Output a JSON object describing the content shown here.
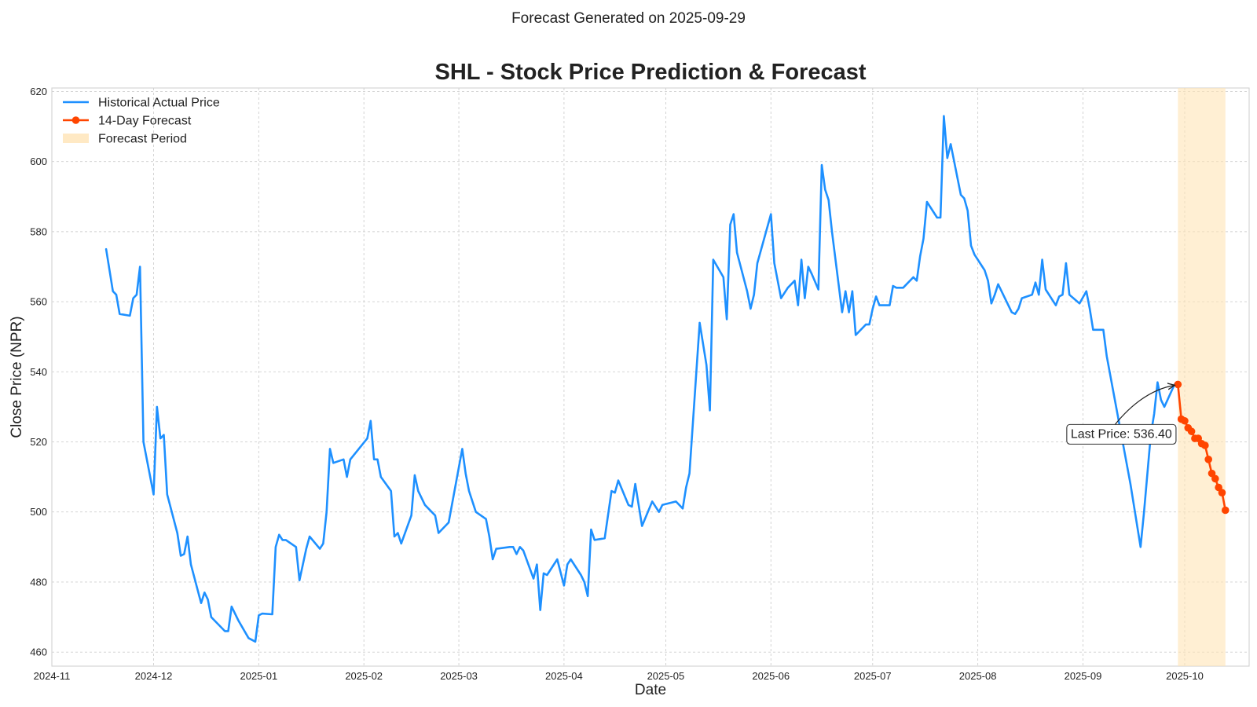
{
  "suptitle": "Forecast Generated on 2025-09-29",
  "chart_data": {
    "type": "line",
    "title": "SHL - Stock Price Prediction & Forecast",
    "xlabel": "Date",
    "ylabel": "Close Price (NPR)",
    "xlim": [
      "2024-11-01",
      "2025-10-20"
    ],
    "ylim": [
      456,
      621
    ],
    "x_ticks": [
      "2024-11-01",
      "2024-12-01",
      "2025-01-01",
      "2025-02-01",
      "2025-03-01",
      "2025-04-01",
      "2025-05-01",
      "2025-06-01",
      "2025-07-01",
      "2025-08-01",
      "2025-09-01",
      "2025-10-01"
    ],
    "x_tick_labels": [
      "2024-11",
      "2024-12",
      "2025-01",
      "2025-02",
      "2025-03",
      "2025-04",
      "2025-05",
      "2025-06",
      "2025-07",
      "2025-08",
      "2025-09",
      "2025-10"
    ],
    "y_ticks": [
      460,
      480,
      500,
      520,
      540,
      560,
      580,
      600,
      620
    ],
    "grid": true,
    "legend_position": "top-left",
    "forecast_period": [
      "2025-09-29",
      "2025-10-13"
    ],
    "series": [
      {
        "name": "Historical Actual Price",
        "color": "#1e90ff",
        "marker": "none",
        "points": [
          [
            "2024-11-17",
            575
          ],
          [
            "2024-11-19",
            563
          ],
          [
            "2024-11-20",
            562
          ],
          [
            "2024-11-21",
            556.5
          ],
          [
            "2024-11-24",
            556
          ],
          [
            "2024-11-25",
            561
          ],
          [
            "2024-11-26",
            562
          ],
          [
            "2024-11-27",
            570
          ],
          [
            "2024-11-28",
            520
          ],
          [
            "2024-12-01",
            505
          ],
          [
            "2024-12-02",
            530
          ],
          [
            "2024-12-03",
            521
          ],
          [
            "2024-12-04",
            522
          ],
          [
            "2024-12-05",
            505
          ],
          [
            "2024-12-08",
            494
          ],
          [
            "2024-12-09",
            487.5
          ],
          [
            "2024-12-10",
            488
          ],
          [
            "2024-12-11",
            493
          ],
          [
            "2024-12-12",
            485
          ],
          [
            "2024-12-15",
            474
          ],
          [
            "2024-12-16",
            477
          ],
          [
            "2024-12-17",
            475
          ],
          [
            "2024-12-18",
            470
          ],
          [
            "2024-12-22",
            466
          ],
          [
            "2024-12-23",
            466
          ],
          [
            "2024-12-24",
            473
          ],
          [
            "2024-12-26",
            469
          ],
          [
            "2024-12-29",
            464
          ],
          [
            "2024-12-31",
            463
          ],
          [
            "2025-01-01",
            470.5
          ],
          [
            "2025-01-02",
            471
          ],
          [
            "2025-01-05",
            470.8
          ],
          [
            "2025-01-06",
            490
          ],
          [
            "2025-01-07",
            493.5
          ],
          [
            "2025-01-08",
            492
          ],
          [
            "2025-01-09",
            492
          ],
          [
            "2025-01-12",
            490
          ],
          [
            "2025-01-13",
            480.5
          ],
          [
            "2025-01-15",
            489.5
          ],
          [
            "2025-01-16",
            493
          ],
          [
            "2025-01-19",
            489.5
          ],
          [
            "2025-01-20",
            491
          ],
          [
            "2025-01-21",
            500
          ],
          [
            "2025-01-22",
            518
          ],
          [
            "2025-01-23",
            514
          ],
          [
            "2025-01-26",
            515
          ],
          [
            "2025-01-27",
            510
          ],
          [
            "2025-01-28",
            515
          ],
          [
            "2025-02-02",
            521
          ],
          [
            "2025-02-03",
            526
          ],
          [
            "2025-02-04",
            515
          ],
          [
            "2025-02-05",
            515
          ],
          [
            "2025-02-06",
            510
          ],
          [
            "2025-02-09",
            506
          ],
          [
            "2025-02-10",
            493
          ],
          [
            "2025-02-11",
            494
          ],
          [
            "2025-02-12",
            491
          ],
          [
            "2025-02-15",
            499
          ],
          [
            "2025-02-16",
            510.5
          ],
          [
            "2025-02-17",
            506
          ],
          [
            "2025-02-19",
            502
          ],
          [
            "2025-02-22",
            499
          ],
          [
            "2025-02-23",
            494
          ],
          [
            "2025-02-26",
            497
          ],
          [
            "2025-03-02",
            518
          ],
          [
            "2025-03-03",
            511
          ],
          [
            "2025-03-04",
            506
          ],
          [
            "2025-03-06",
            500
          ],
          [
            "2025-03-09",
            498
          ],
          [
            "2025-03-10",
            493
          ],
          [
            "2025-03-11",
            486.5
          ],
          [
            "2025-03-12",
            489.5
          ],
          [
            "2025-03-16",
            490
          ],
          [
            "2025-03-17",
            490
          ],
          [
            "2025-03-18",
            488
          ],
          [
            "2025-03-19",
            490
          ],
          [
            "2025-03-20",
            489
          ],
          [
            "2025-03-23",
            481
          ],
          [
            "2025-03-24",
            485
          ],
          [
            "2025-03-25",
            472
          ],
          [
            "2025-03-26",
            482.5
          ],
          [
            "2025-03-27",
            482
          ],
          [
            "2025-03-30",
            486.5
          ],
          [
            "2025-04-01",
            479
          ],
          [
            "2025-04-02",
            485
          ],
          [
            "2025-04-03",
            486.5
          ],
          [
            "2025-04-06",
            482
          ],
          [
            "2025-04-07",
            480
          ],
          [
            "2025-04-08",
            476
          ],
          [
            "2025-04-09",
            495
          ],
          [
            "2025-04-10",
            492
          ],
          [
            "2025-04-13",
            492.5
          ],
          [
            "2025-04-15",
            506
          ],
          [
            "2025-04-16",
            505.5
          ],
          [
            "2025-04-17",
            509
          ],
          [
            "2025-04-20",
            502
          ],
          [
            "2025-04-21",
            501.5
          ],
          [
            "2025-04-22",
            508
          ],
          [
            "2025-04-24",
            496
          ],
          [
            "2025-04-27",
            503
          ],
          [
            "2025-04-29",
            500
          ],
          [
            "2025-04-30",
            502
          ],
          [
            "2025-05-04",
            503
          ],
          [
            "2025-05-06",
            501
          ],
          [
            "2025-05-07",
            507
          ],
          [
            "2025-05-08",
            511
          ],
          [
            "2025-05-11",
            554
          ],
          [
            "2025-05-13",
            542
          ],
          [
            "2025-05-14",
            529
          ],
          [
            "2025-05-15",
            572
          ],
          [
            "2025-05-18",
            567
          ],
          [
            "2025-05-19",
            555
          ],
          [
            "2025-05-20",
            582
          ],
          [
            "2025-05-21",
            585
          ],
          [
            "2025-05-22",
            574
          ],
          [
            "2025-05-25",
            563
          ],
          [
            "2025-05-26",
            558
          ],
          [
            "2025-05-27",
            562
          ],
          [
            "2025-05-28",
            571
          ],
          [
            "2025-06-01",
            585
          ],
          [
            "2025-06-02",
            571
          ],
          [
            "2025-06-04",
            561
          ],
          [
            "2025-06-06",
            564
          ],
          [
            "2025-06-08",
            566
          ],
          [
            "2025-06-09",
            559
          ],
          [
            "2025-06-10",
            572
          ],
          [
            "2025-06-11",
            561
          ],
          [
            "2025-06-12",
            570
          ],
          [
            "2025-06-13",
            568
          ],
          [
            "2025-06-15",
            563.5
          ],
          [
            "2025-06-16",
            599
          ],
          [
            "2025-06-17",
            592
          ],
          [
            "2025-06-18",
            589
          ],
          [
            "2025-06-19",
            580
          ],
          [
            "2025-06-22",
            557
          ],
          [
            "2025-06-23",
            563
          ],
          [
            "2025-06-24",
            557
          ],
          [
            "2025-06-25",
            563
          ],
          [
            "2025-06-26",
            550.5
          ],
          [
            "2025-06-29",
            553.5
          ],
          [
            "2025-06-30",
            553.5
          ],
          [
            "2025-07-01",
            558
          ],
          [
            "2025-07-02",
            561.5
          ],
          [
            "2025-07-03",
            559
          ],
          [
            "2025-07-06",
            559
          ],
          [
            "2025-07-07",
            564.5
          ],
          [
            "2025-07-08",
            564
          ],
          [
            "2025-07-10",
            564
          ],
          [
            "2025-07-13",
            567
          ],
          [
            "2025-07-14",
            566
          ],
          [
            "2025-07-15",
            573
          ],
          [
            "2025-07-16",
            578
          ],
          [
            "2025-07-17",
            588.5
          ],
          [
            "2025-07-20",
            584
          ],
          [
            "2025-07-21",
            584
          ],
          [
            "2025-07-22",
            613
          ],
          [
            "2025-07-23",
            601
          ],
          [
            "2025-07-24",
            605
          ],
          [
            "2025-07-27",
            590.5
          ],
          [
            "2025-07-28",
            589.5
          ],
          [
            "2025-07-29",
            586
          ],
          [
            "2025-07-30",
            576
          ],
          [
            "2025-07-31",
            573.5
          ],
          [
            "2025-08-03",
            569
          ],
          [
            "2025-08-04",
            566
          ],
          [
            "2025-08-05",
            559.5
          ],
          [
            "2025-08-06",
            562
          ],
          [
            "2025-08-07",
            565
          ],
          [
            "2025-08-11",
            557
          ],
          [
            "2025-08-12",
            556.5
          ],
          [
            "2025-08-13",
            558
          ],
          [
            "2025-08-14",
            561
          ],
          [
            "2025-08-17",
            562
          ],
          [
            "2025-08-18",
            565.5
          ],
          [
            "2025-08-19",
            562
          ],
          [
            "2025-08-20",
            572
          ],
          [
            "2025-08-21",
            563.5
          ],
          [
            "2025-08-24",
            559
          ],
          [
            "2025-08-25",
            561.5
          ],
          [
            "2025-08-26",
            562
          ],
          [
            "2025-08-27",
            571
          ],
          [
            "2025-08-28",
            562
          ],
          [
            "2025-08-31",
            559.5
          ],
          [
            "2025-09-02",
            563
          ],
          [
            "2025-09-03",
            558
          ],
          [
            "2025-09-04",
            552
          ],
          [
            "2025-09-07",
            552
          ],
          [
            "2025-09-08",
            544.5
          ],
          [
            "2025-09-15",
            508
          ],
          [
            "2025-09-18",
            490
          ],
          [
            "2025-09-19",
            500
          ],
          [
            "2025-09-21",
            522
          ],
          [
            "2025-09-22",
            528
          ],
          [
            "2025-09-23",
            537
          ],
          [
            "2025-09-24",
            532
          ],
          [
            "2025-09-25",
            530
          ],
          [
            "2025-09-28",
            536.4
          ]
        ]
      },
      {
        "name": "14-Day Forecast",
        "color": "#ff4500",
        "marker": "circle",
        "points": [
          [
            "2025-09-29",
            536.4
          ],
          [
            "2025-09-30",
            526.5
          ],
          [
            "2025-10-01",
            526
          ],
          [
            "2025-10-02",
            524
          ],
          [
            "2025-10-03",
            523
          ],
          [
            "2025-10-04",
            521
          ],
          [
            "2025-10-05",
            521
          ],
          [
            "2025-10-06",
            519.5
          ],
          [
            "2025-10-07",
            519
          ],
          [
            "2025-10-08",
            515
          ],
          [
            "2025-10-09",
            511
          ],
          [
            "2025-10-10",
            509.5
          ],
          [
            "2025-10-11",
            507
          ],
          [
            "2025-10-12",
            505.5
          ],
          [
            "2025-10-13",
            500.5
          ]
        ]
      }
    ],
    "legend": [
      "Historical Actual Price",
      "14-Day Forecast",
      "Forecast Period"
    ],
    "forecast_period_color": "#ffe4b5",
    "annotation": {
      "text": "Last Price: 536.40",
      "x": "2025-09-29",
      "y": 536.4
    }
  }
}
